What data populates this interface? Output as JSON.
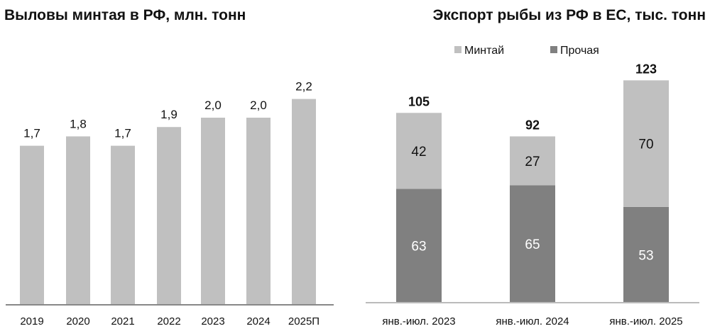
{
  "chart_data": [
    {
      "type": "bar",
      "title": "Выловы минтая в РФ, млн. тонн",
      "categories": [
        "2019",
        "2020",
        "2021",
        "2022",
        "2023",
        "2024",
        "2025П"
      ],
      "values": [
        1.7,
        1.8,
        1.7,
        1.9,
        2.0,
        2.0,
        2.2
      ],
      "value_labels": [
        "1,7",
        "1,8",
        "1,7",
        "1,9",
        "2,0",
        "2,0",
        "2,2"
      ],
      "xlabel": "",
      "ylabel": "",
      "ylim": [
        0,
        2.5
      ],
      "grid": false,
      "color": "#c0c0c0"
    },
    {
      "type": "bar",
      "stacked": true,
      "title": "Экспорт рыбы из РФ в ЕС, тыс. тонн",
      "categories": [
        "янв.-июл. 2023",
        "янв.-июл. 2024",
        "янв.-июл. 2025"
      ],
      "series": [
        {
          "name": "Прочая",
          "values": [
            63,
            65,
            53
          ],
          "color": "#808080"
        },
        {
          "name": "Минтай",
          "values": [
            42,
            27,
            70
          ],
          "color": "#c0c0c0"
        }
      ],
      "totals": [
        105,
        92,
        123
      ],
      "legend": {
        "position": "top",
        "order": [
          "Минтай",
          "Прочая"
        ]
      },
      "xlabel": "",
      "ylabel": "",
      "ylim": [
        0,
        130
      ],
      "grid": false
    }
  ]
}
